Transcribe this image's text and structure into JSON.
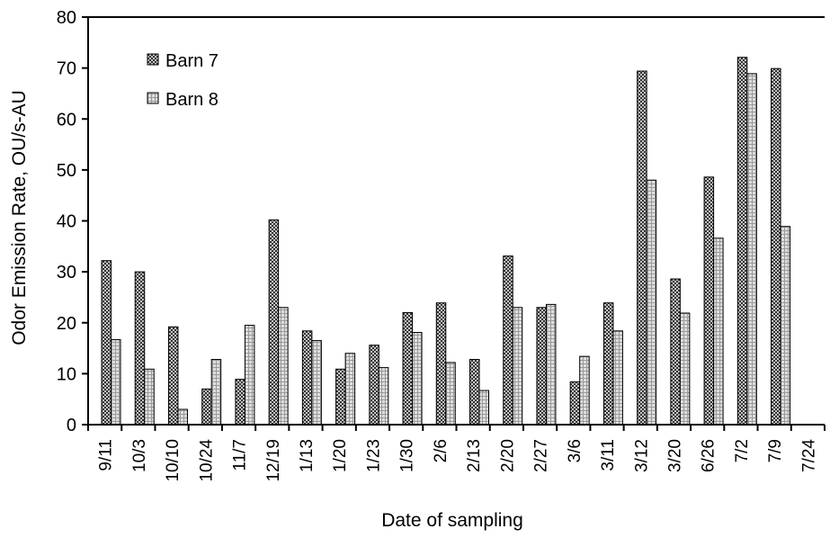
{
  "chart_data": {
    "type": "bar",
    "title": "",
    "xlabel": "Date of sampling",
    "ylabel": "Odor Emission Rate, OU/s-AU",
    "ylim": [
      0,
      80
    ],
    "yticks": [
      0,
      10,
      20,
      30,
      40,
      50,
      60,
      70,
      80
    ],
    "grid": false,
    "legend_position": "top-left",
    "categories": [
      "9/11",
      "10/3",
      "10/10",
      "10/24",
      "11/7",
      "12/19",
      "1/13",
      "1/20",
      "1/23",
      "1/30",
      "2/6",
      "2/13",
      "2/20",
      "2/27",
      "3/6",
      "3/11",
      "3/12",
      "3/20",
      "6/26",
      "7/2",
      "7/9",
      "7/24"
    ],
    "series": [
      {
        "name": "Barn 7",
        "pattern": "crosshatch-dark",
        "values": [
          32.2,
          30.0,
          19.2,
          7.0,
          8.9,
          40.2,
          18.4,
          10.9,
          15.6,
          22.0,
          23.9,
          12.8,
          33.1,
          23.0,
          8.4,
          23.9,
          69.4,
          28.6,
          48.6,
          72.1,
          69.9,
          null
        ]
      },
      {
        "name": "Barn 8",
        "pattern": "crosshatch-light",
        "values": [
          16.7,
          10.9,
          3.0,
          12.8,
          19.5,
          23.0,
          16.5,
          14.0,
          11.2,
          18.1,
          12.2,
          6.7,
          23.0,
          23.6,
          13.4,
          18.4,
          48.0,
          21.9,
          36.6,
          68.9,
          38.9,
          null
        ]
      }
    ]
  }
}
